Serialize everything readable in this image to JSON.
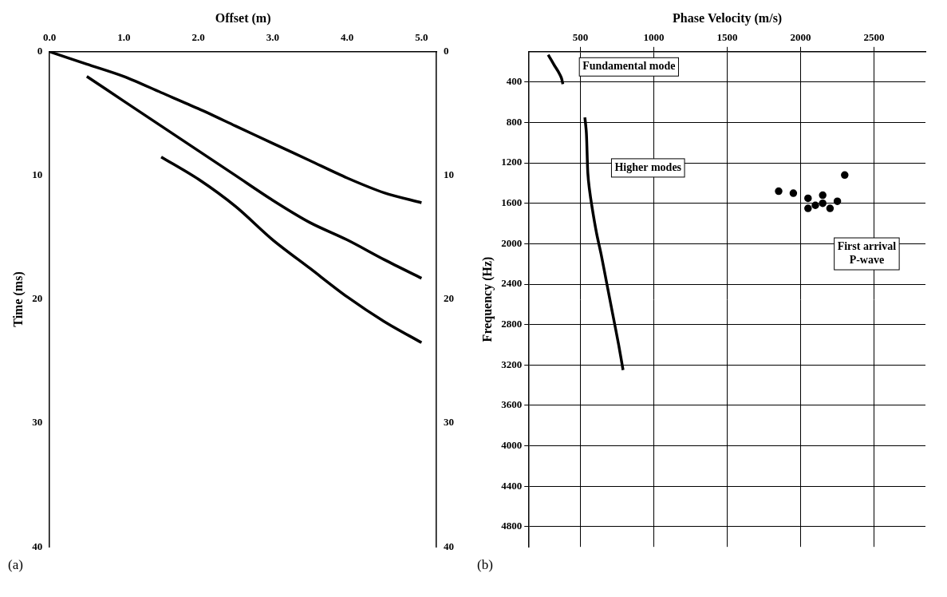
{
  "chart_data": [
    {
      "type": "line",
      "panel": "(a)",
      "x_label": "Offset (m)",
      "y_label": "Time (ms)",
      "xlim": [
        0,
        5.2
      ],
      "xticks": [
        {
          "value": 0,
          "label": "0.0"
        },
        {
          "value": 1,
          "label": "1.0"
        },
        {
          "value": 2,
          "label": "2.0"
        },
        {
          "value": 3,
          "label": "3.0"
        },
        {
          "value": 4,
          "label": "4.0"
        },
        {
          "value": 5,
          "label": "5.0"
        }
      ],
      "ylim": [
        0,
        40
      ],
      "yticks": [
        0,
        10,
        20,
        30,
        40
      ],
      "y2lim": [
        0,
        40
      ],
      "y2ticks": [
        0,
        10,
        20,
        30,
        40
      ],
      "grid": false,
      "series": [
        {
          "color": "#000000",
          "line_style": "solid",
          "x": [
            0,
            0.5,
            1,
            1.5,
            2,
            2.5,
            3,
            3.5,
            4,
            4.5,
            5
          ],
          "values": [
            0,
            1,
            2,
            3.3,
            4.6,
            6,
            7.4,
            8.8,
            10.2,
            11.4,
            12.2
          ]
        },
        {
          "color": "#000000",
          "line_style": "solid",
          "x": [
            0.5,
            1,
            1.5,
            2,
            2.5,
            3,
            3.5,
            4,
            4.5,
            5
          ],
          "values": [
            2,
            4,
            6,
            8,
            10,
            12,
            13.8,
            15.2,
            16.8,
            18.3
          ]
        },
        {
          "color": "#000000",
          "line_style": "solid",
          "x": [
            1.5,
            2,
            2.5,
            3,
            3.5,
            4,
            4.5,
            5
          ],
          "values": [
            8.5,
            10.3,
            12.5,
            15.2,
            17.5,
            19.8,
            21.8,
            23.5
          ]
        }
      ]
    },
    {
      "type": "line",
      "panel": "(b)",
      "x_label": "Phase Velocity (m/s)",
      "y_label": "Frequency (Hz)",
      "xlim": [
        150,
        2850
      ],
      "xticks": [
        500,
        1000,
        1500,
        2000,
        2500
      ],
      "ylim": [
        100,
        5000
      ],
      "yticks": [
        400,
        800,
        1200,
        1600,
        2000,
        2400,
        2800,
        3200,
        3600,
        4000,
        4400,
        4800
      ],
      "grid": true,
      "series": [
        {
          "color": "#000000",
          "line_style": "solid",
          "x": [
            280,
            300,
            320,
            350,
            370,
            380
          ],
          "values": [
            130,
            180,
            230,
            300,
            360,
            420
          ]
        },
        {
          "color": "#000000",
          "line_style": "solid",
          "x": [
            530,
            540,
            545,
            550,
            560,
            580,
            610,
            640,
            680,
            720,
            760,
            790
          ],
          "values": [
            750,
            900,
            1100,
            1300,
            1450,
            1650,
            1900,
            2100,
            2400,
            2700,
            3000,
            3250
          ]
        },
        {
          "color": "#000000",
          "line_style": "none",
          "marker": "circle",
          "x": [
            1850,
            1950,
            2050,
            2100,
            2150,
            2200,
            2250,
            2300,
            2050,
            2150
          ],
          "values": [
            1480,
            1500,
            1550,
            1620,
            1600,
            1650,
            1580,
            1320,
            1650,
            1520
          ]
        }
      ],
      "annotations": [
        {
          "text": [
            "Fundamental mode"
          ],
          "x": 830,
          "y": 250
        },
        {
          "text": [
            "Higher modes"
          ],
          "x": 960,
          "y": 1250
        },
        {
          "text": [
            "First arrival",
            "P-wave"
          ],
          "x": 2450,
          "y": 2100
        }
      ]
    }
  ]
}
